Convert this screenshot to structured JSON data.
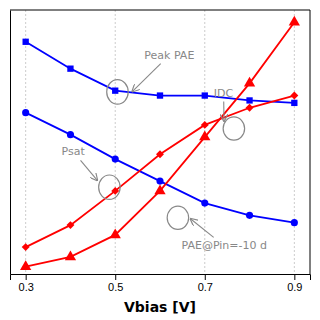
{
  "chart_data": {
    "type": "line",
    "x_label": "Vbias [V]",
    "x": [
      0.3,
      0.4,
      0.5,
      0.6,
      0.7,
      0.8,
      0.9
    ],
    "xlim": [
      0.265,
      0.935
    ],
    "xticks": [
      0.3,
      0.5,
      0.7,
      0.9
    ],
    "ylim": [
      0.0,
      1.08
    ],
    "yticks": [],
    "tick_labels": "x",
    "grid": true,
    "series": [
      {
        "color": "#0000ff",
        "marker": "square",
        "values": [
          0.95,
          0.84,
          0.75,
          0.73,
          0.73,
          0.71,
          0.7
        ]
      },
      {
        "color": "#0000ff",
        "marker": "circle",
        "values": [
          0.66,
          0.57,
          0.47,
          0.38,
          0.29,
          0.24,
          0.21
        ]
      },
      {
        "color": "#ff0000",
        "marker": "triangle",
        "values": [
          0.03,
          0.07,
          0.16,
          0.34,
          0.56,
          0.78,
          1.03
        ]
      },
      {
        "color": "#ff0000",
        "marker": "diamond",
        "values": [
          0.11,
          0.2,
          0.34,
          0.49,
          0.61,
          0.68,
          0.73
        ]
      }
    ],
    "annotations": [
      {
        "text": "Peak PAE",
        "x": 0.565,
        "y": 0.895,
        "point": [
          0.538,
          0.746
        ],
        "ellipse": {
          "x": 0.505,
          "y": 0.745,
          "width": 0.048,
          "height": 0.1
        },
        "color": "#888888"
      },
      {
        "text": "IDC",
        "x": 0.72,
        "y": 0.74,
        "point": [
          0.743,
          0.625
        ],
        "ellipse": {
          "x": 0.765,
          "y": 0.595,
          "width": 0.048,
          "height": 0.095
        },
        "color": "#888888"
      },
      {
        "text": "Psat",
        "x": 0.38,
        "y": 0.5,
        "point": [
          0.46,
          0.383
        ],
        "ellipse": {
          "x": 0.487,
          "y": 0.355,
          "width": 0.048,
          "height": 0.1
        },
        "color": "#888888"
      },
      {
        "text": "PAE@Pin=-10 d",
        "x": 0.648,
        "y": 0.115,
        "point": [
          0.668,
          0.226
        ],
        "ellipse": {
          "x": 0.64,
          "y": 0.23,
          "width": 0.048,
          "height": 0.095
        },
        "color": "#888888"
      }
    ]
  }
}
